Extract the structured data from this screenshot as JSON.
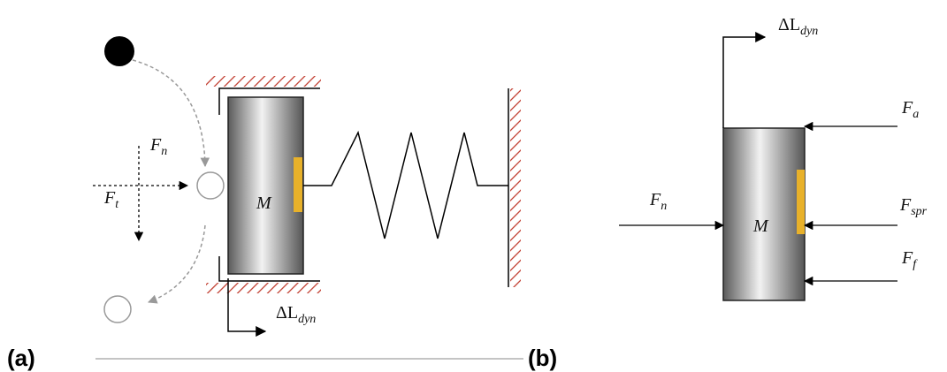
{
  "panel_a": {
    "label": "(a)",
    "mass": "M",
    "force_normal": {
      "base": "F",
      "sub": "n"
    },
    "force_tangential": {
      "base": "F",
      "sub": "t"
    },
    "displacement": {
      "base": "ΔL",
      "sub": "dyn"
    }
  },
  "panel_b": {
    "label": "(b)",
    "mass": "M",
    "displacement": {
      "base": "ΔL",
      "sub": "dyn"
    },
    "forces": [
      {
        "base": "F",
        "sub": "n"
      },
      {
        "base": "F",
        "sub": "a"
      },
      {
        "base": "F",
        "sub": "spr"
      },
      {
        "base": "F",
        "sub": "f"
      }
    ]
  }
}
